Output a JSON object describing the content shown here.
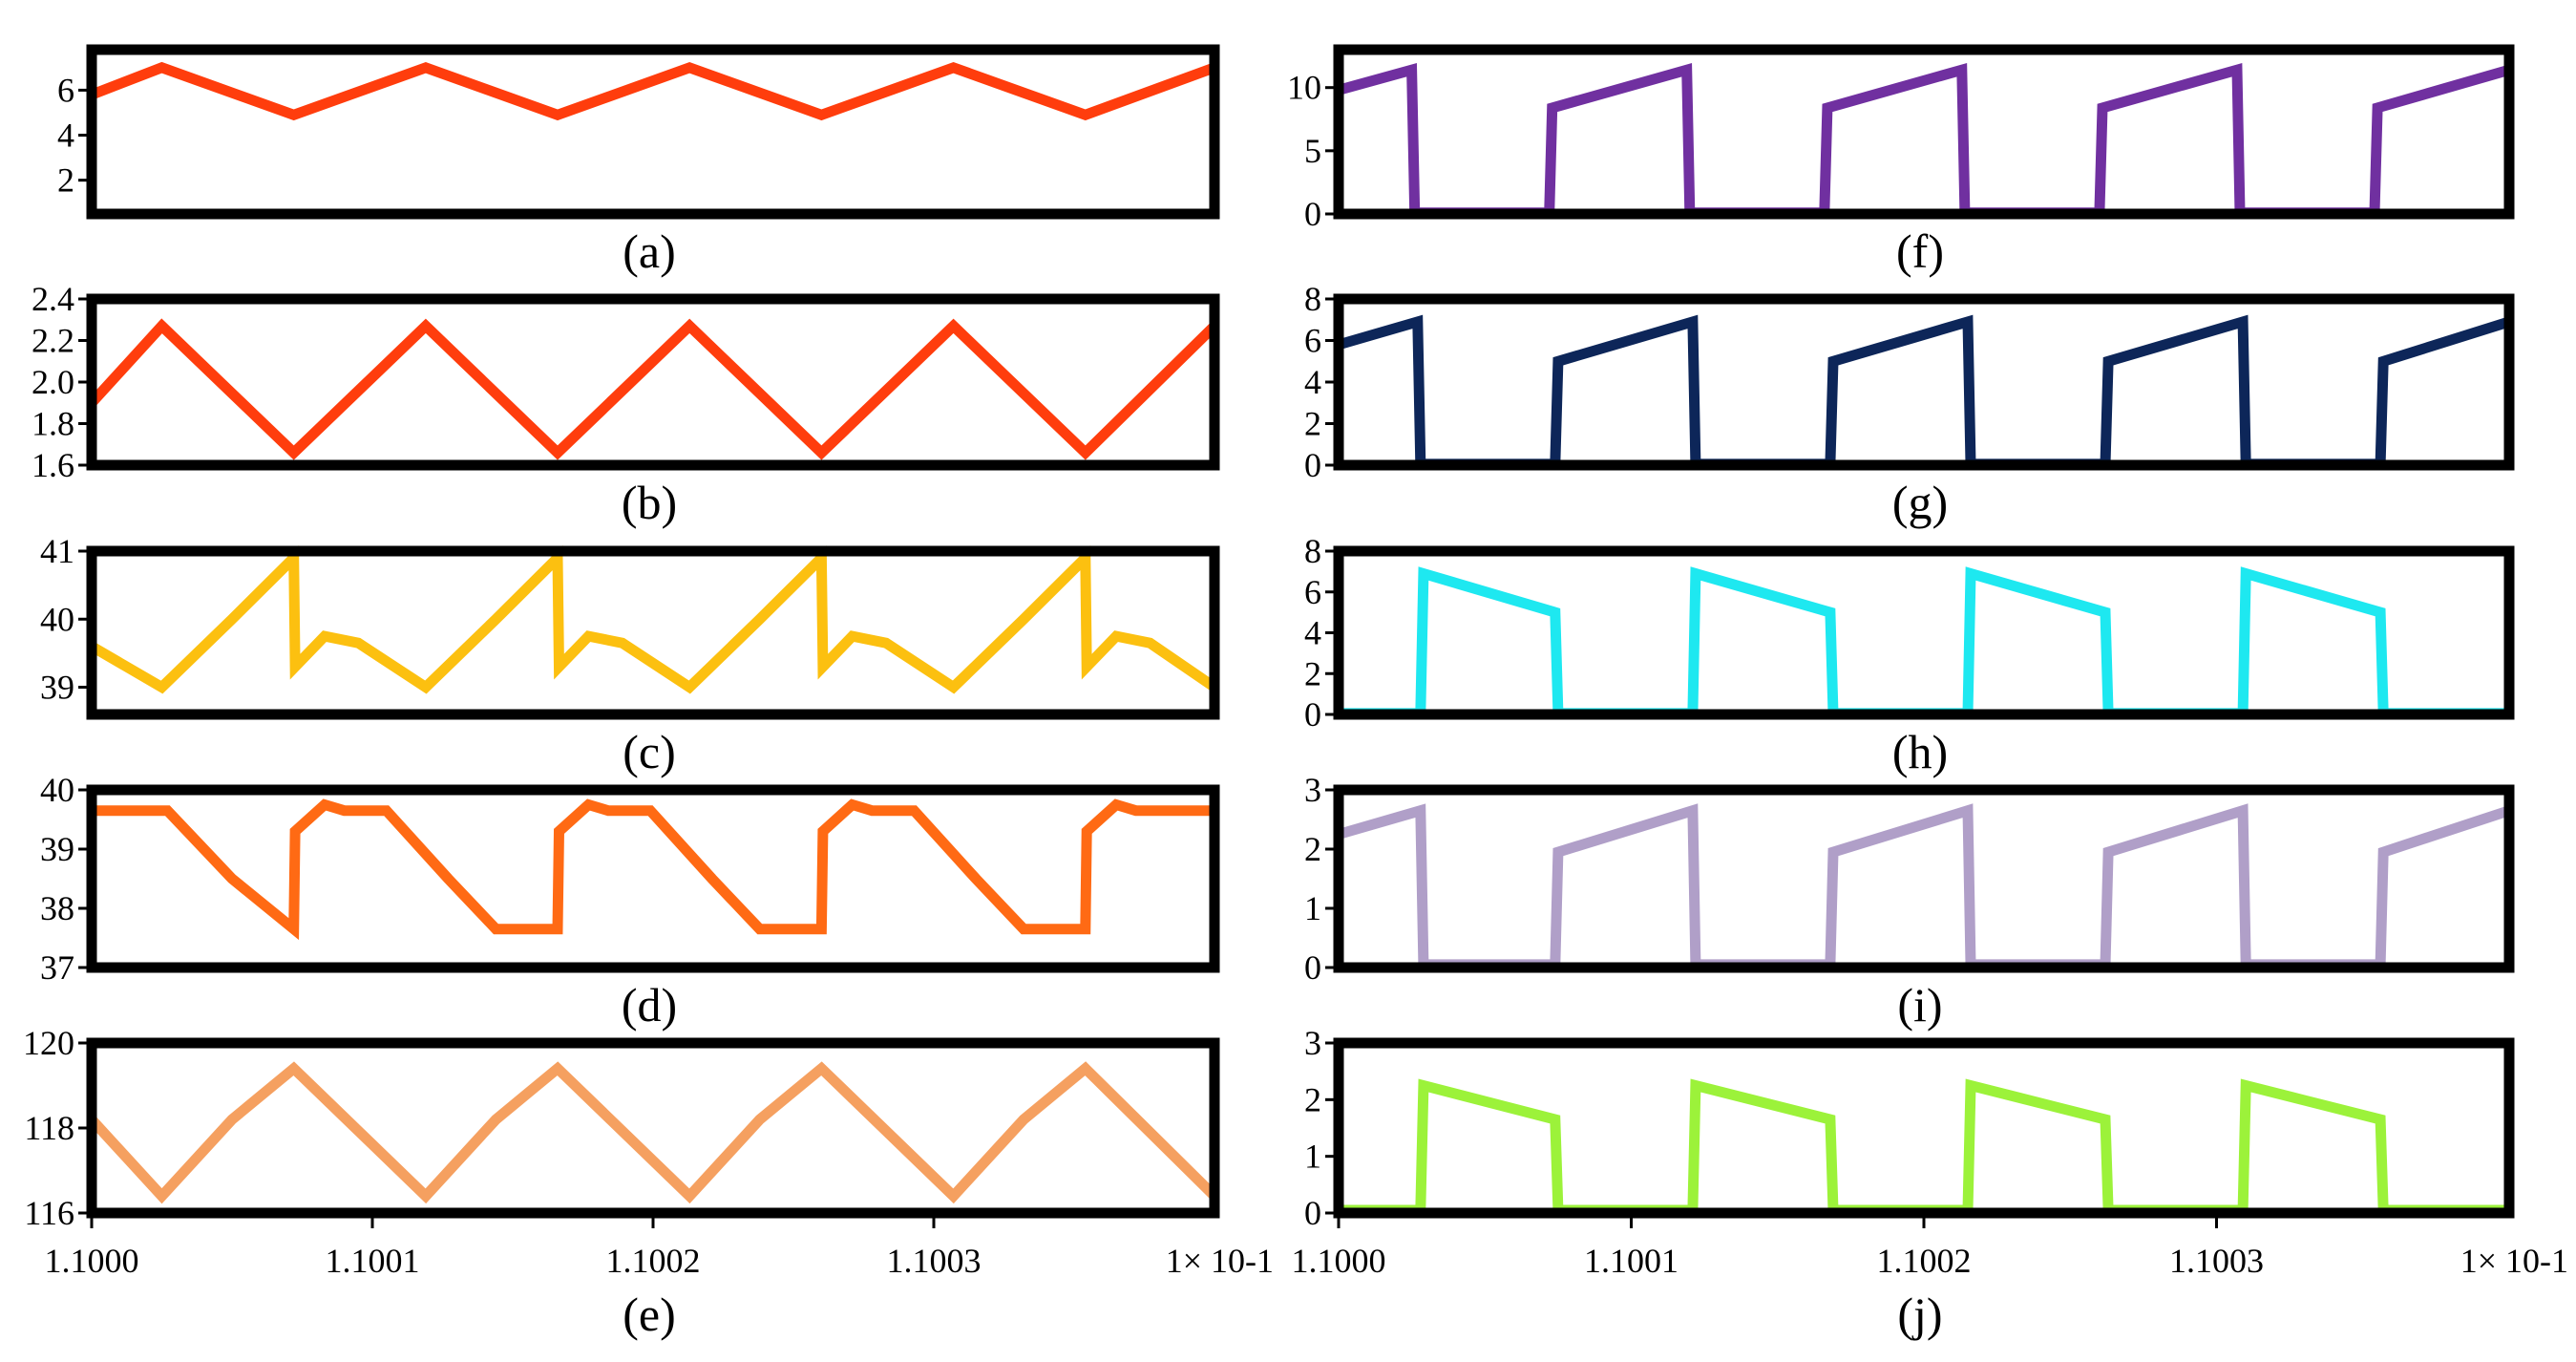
{
  "chart_data": [
    {
      "id": "a",
      "type": "line",
      "caption": "(a)",
      "color": "#ff3d0d",
      "ylim": [
        0.5,
        7.8
      ],
      "yticks": [
        "2",
        "4",
        "6"
      ],
      "ytick_values": [
        2,
        4,
        6
      ],
      "x": [
        0,
        0.25,
        0.72,
        1.19,
        1.66,
        2.13,
        2.6,
        3.07,
        3.54,
        4.0
      ],
      "y": [
        5.8,
        7.0,
        4.9,
        7.0,
        4.9,
        7.0,
        4.9,
        7.0,
        4.9,
        7.0
      ]
    },
    {
      "id": "b",
      "type": "line",
      "caption": "(b)",
      "color": "#ff3d0d",
      "ylim": [
        1.6,
        2.4
      ],
      "yticks": [
        "1.6",
        "1.8",
        "2.0",
        "2.2",
        "2.4"
      ],
      "ytick_values": [
        1.6,
        1.8,
        2.0,
        2.2,
        2.4
      ],
      "x": [
        0,
        0.25,
        0.72,
        1.19,
        1.66,
        2.13,
        2.6,
        3.07,
        3.54,
        4.0
      ],
      "y": [
        1.9,
        2.27,
        1.66,
        2.27,
        1.66,
        2.27,
        1.66,
        2.27,
        1.66,
        2.27
      ]
    },
    {
      "id": "c",
      "type": "line",
      "caption": "(c)",
      "color": "#fcc010",
      "ylim": [
        38.6,
        41.0
      ],
      "yticks": [
        "39",
        "40",
        "41"
      ],
      "ytick_values": [
        39,
        40,
        41
      ],
      "x": [
        0,
        0.25,
        0.5,
        0.72,
        0.725,
        0.83,
        0.95,
        1.19,
        1.44,
        1.66,
        1.665,
        1.77,
        1.89,
        2.13,
        2.38,
        2.6,
        2.605,
        2.71,
        2.83,
        3.07,
        3.32,
        3.54,
        3.545,
        3.65,
        3.77,
        4.0
      ],
      "y": [
        39.6,
        39.0,
        40.0,
        40.9,
        39.3,
        39.75,
        39.65,
        39.0,
        40.0,
        40.9,
        39.3,
        39.75,
        39.65,
        39.0,
        40.0,
        40.9,
        39.3,
        39.75,
        39.65,
        39.0,
        40.0,
        40.9,
        39.3,
        39.75,
        39.65,
        39.0
      ]
    },
    {
      "id": "d",
      "type": "line",
      "caption": "(d)",
      "color": "#ff6a14",
      "ylim": [
        37.0,
        40.0
      ],
      "yticks": [
        "37",
        "38",
        "39",
        "40"
      ],
      "ytick_values": [
        37,
        38,
        39,
        40
      ],
      "x": [
        0,
        0.27,
        0.5,
        0.72,
        0.725,
        0.83,
        0.9,
        1.05,
        1.27,
        1.44,
        1.66,
        1.665,
        1.77,
        1.84,
        1.99,
        2.21,
        2.38,
        2.6,
        2.605,
        2.71,
        2.78,
        2.93,
        3.15,
        3.32,
        3.54,
        3.545,
        3.65,
        3.72,
        4.0
      ],
      "y": [
        39.65,
        39.65,
        38.5,
        37.65,
        39.3,
        39.75,
        39.65,
        39.65,
        38.5,
        37.65,
        37.65,
        39.3,
        39.75,
        39.65,
        39.65,
        38.5,
        37.65,
        37.65,
        39.3,
        39.75,
        39.65,
        39.65,
        38.5,
        37.65,
        37.65,
        39.3,
        39.75,
        39.65,
        39.65
      ]
    },
    {
      "id": "e",
      "type": "line",
      "caption": "(e)",
      "color": "#f5a060",
      "ylim": [
        116.0,
        120.0
      ],
      "yticks": [
        "116",
        "118",
        "120"
      ],
      "ytick_values": [
        116,
        118,
        120
      ],
      "x": [
        0,
        0.25,
        0.5,
        0.72,
        1.19,
        1.44,
        1.66,
        2.13,
        2.38,
        2.6,
        3.07,
        3.32,
        3.54,
        4.0
      ],
      "y": [
        118.2,
        116.4,
        118.2,
        119.4,
        116.4,
        118.2,
        119.4,
        116.4,
        118.2,
        119.4,
        116.4,
        118.2,
        119.4,
        116.4
      ],
      "xticks": [
        "1.1000",
        "1.1001",
        "1.1002",
        "1.1003"
      ],
      "xtick_values": [
        0,
        1,
        2,
        3
      ],
      "x_unit": "1× 10-1"
    },
    {
      "id": "f",
      "type": "line",
      "caption": "(f)",
      "color": "#7030a0",
      "ylim": [
        0,
        13
      ],
      "yticks": [
        "0",
        "5",
        "10"
      ],
      "ytick_values": [
        0,
        5,
        10
      ],
      "x": [
        0,
        0.25,
        0.26,
        0.72,
        0.73,
        1.19,
        1.2,
        1.66,
        1.67,
        2.13,
        2.14,
        2.6,
        2.61,
        3.07,
        3.08,
        3.54,
        3.55,
        4.0
      ],
      "y": [
        9.8,
        11.4,
        0.1,
        0.1,
        8.4,
        11.4,
        0.1,
        0.1,
        8.4,
        11.4,
        0.1,
        0.1,
        8.4,
        11.4,
        0.1,
        0.1,
        8.4,
        11.4
      ]
    },
    {
      "id": "g",
      "type": "line",
      "caption": "(g)",
      "color": "#0d2659",
      "ylim": [
        0,
        8
      ],
      "yticks": [
        "0",
        "2",
        "4",
        "6",
        "8"
      ],
      "ytick_values": [
        0,
        2,
        4,
        6,
        8
      ],
      "x": [
        0,
        0.27,
        0.28,
        0.74,
        0.75,
        1.21,
        1.22,
        1.68,
        1.69,
        2.15,
        2.16,
        2.62,
        2.63,
        3.09,
        3.1,
        3.56,
        3.57,
        4.0
      ],
      "y": [
        5.8,
        6.9,
        0.05,
        0.05,
        5.0,
        6.9,
        0.05,
        0.05,
        5.0,
        6.9,
        0.05,
        0.05,
        5.0,
        6.9,
        0.05,
        0.05,
        5.0,
        6.9
      ]
    },
    {
      "id": "h",
      "type": "line",
      "caption": "(h)",
      "color": "#1ee8f0",
      "ylim": [
        0,
        8
      ],
      "yticks": [
        "0",
        "2",
        "4",
        "6",
        "8"
      ],
      "ytick_values": [
        0,
        2,
        4,
        6,
        8
      ],
      "x": [
        0,
        0.28,
        0.29,
        0.74,
        0.75,
        1.21,
        1.22,
        1.68,
        1.69,
        2.15,
        2.16,
        2.62,
        2.63,
        3.09,
        3.1,
        3.56,
        3.57,
        4.0
      ],
      "y": [
        0.05,
        0.05,
        6.9,
        5.0,
        0.05,
        0.05,
        6.9,
        5.0,
        0.05,
        0.05,
        6.9,
        5.0,
        0.05,
        0.05,
        6.9,
        5.0,
        0.05,
        0.05
      ]
    },
    {
      "id": "i",
      "type": "line",
      "caption": "(i)",
      "color": "#b09fc8",
      "ylim": [
        0,
        3
      ],
      "yticks": [
        "0",
        "1",
        "2",
        "3"
      ],
      "ytick_values": [
        0,
        1,
        2,
        3
      ],
      "x": [
        0,
        0.28,
        0.29,
        0.74,
        0.75,
        1.21,
        1.22,
        1.68,
        1.69,
        2.15,
        2.16,
        2.62,
        2.63,
        3.09,
        3.1,
        3.56,
        3.57,
        4.0
      ],
      "y": [
        2.25,
        2.65,
        0.05,
        0.05,
        1.95,
        2.65,
        0.05,
        0.05,
        1.95,
        2.65,
        0.05,
        0.05,
        1.95,
        2.65,
        0.05,
        0.05,
        1.95,
        2.65
      ]
    },
    {
      "id": "j",
      "type": "line",
      "caption": "(j)",
      "color": "#9cf23a",
      "ylim": [
        0,
        3
      ],
      "yticks": [
        "0",
        "1",
        "2",
        "3"
      ],
      "ytick_values": [
        0,
        1,
        2,
        3
      ],
      "x": [
        0,
        0.28,
        0.29,
        0.74,
        0.75,
        1.21,
        1.22,
        1.68,
        1.69,
        2.15,
        2.16,
        2.62,
        2.63,
        3.09,
        3.1,
        3.56,
        3.57,
        4.0
      ],
      "y": [
        0.05,
        0.05,
        2.25,
        1.65,
        0.05,
        0.05,
        2.25,
        1.65,
        0.05,
        0.05,
        2.25,
        1.65,
        0.05,
        0.05,
        2.25,
        1.65,
        0.05,
        0.05
      ],
      "xticks": [
        "1.1000",
        "1.1001",
        "1.1002",
        "1.1003"
      ],
      "xtick_values": [
        0,
        1,
        2,
        3
      ],
      "x_unit": "1× 10-1"
    }
  ]
}
